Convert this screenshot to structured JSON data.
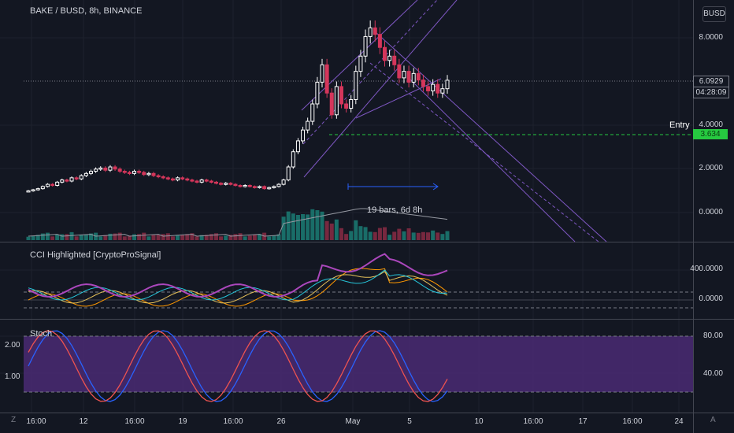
{
  "header": {
    "title": "BAKE / BUSD, 8h, BINANCE",
    "currency": "BUSD"
  },
  "indicators": {
    "cci_label": "CCI Highlighted [CryptoProSignal]",
    "stoch_label": "Stoch"
  },
  "annotations": {
    "measure": "19 bars, 6d 8h",
    "entry": "Entry"
  },
  "axes": {
    "price": [
      "8.0000",
      "4.0000",
      "2.0000",
      "0.0000"
    ],
    "last_price": "6.0929",
    "countdown": "04:28:09",
    "entry_price": "3.634",
    "cci": [
      "400.0000",
      "0.0000"
    ],
    "stoch": [
      "80.00",
      "40.00"
    ],
    "left": [
      "2.00",
      "1.00"
    ],
    "time": [
      "16:00",
      "12",
      "16:00",
      "19",
      "16:00",
      "26",
      "May",
      "5",
      "10",
      "16:00",
      "17",
      "16:00",
      "24"
    ]
  },
  "controls": {
    "zoom": "Z",
    "auto": "A"
  },
  "colors": {
    "up": "#ffffff",
    "down": "#d5365b",
    "channel": "#7e57c2",
    "entry": "#26c940",
    "volume": "#26a69a",
    "background": "#131722"
  },
  "chart_data": {
    "type": "candlestick",
    "candles_close": [
      1.0,
      1.05,
      1.1,
      1.2,
      1.3,
      1.25,
      1.4,
      1.5,
      1.45,
      1.6,
      1.55,
      1.7,
      1.8,
      1.9,
      2.0,
      2.05,
      1.95,
      2.1,
      2.0,
      1.9,
      1.85,
      1.8,
      1.9,
      1.85,
      1.75,
      1.8,
      1.7,
      1.65,
      1.6,
      1.55,
      1.5,
      1.6,
      1.55,
      1.5,
      1.45,
      1.4,
      1.5,
      1.45,
      1.4,
      1.35,
      1.3,
      1.35,
      1.3,
      1.25,
      1.2,
      1.25,
      1.2,
      1.15,
      1.2,
      1.1,
      1.15,
      1.2,
      1.3,
      1.5,
      2.1,
      2.8,
      3.3,
      3.8,
      4.2,
      5.0,
      6.0,
      6.8,
      5.5,
      4.5,
      5.8,
      5.0,
      4.8,
      5.2,
      6.5,
      7.2,
      8.1,
      8.5,
      8.2,
      7.6,
      7.0,
      7.2,
      6.8,
      6.2,
      6.5,
      6.0,
      6.4,
      6.1,
      5.8,
      5.6,
      5.9,
      5.5,
      5.7,
      6.09
    ],
    "last_price": 6.0929,
    "entry": 3.634,
    "ylim": [
      0,
      8.5
    ]
  }
}
